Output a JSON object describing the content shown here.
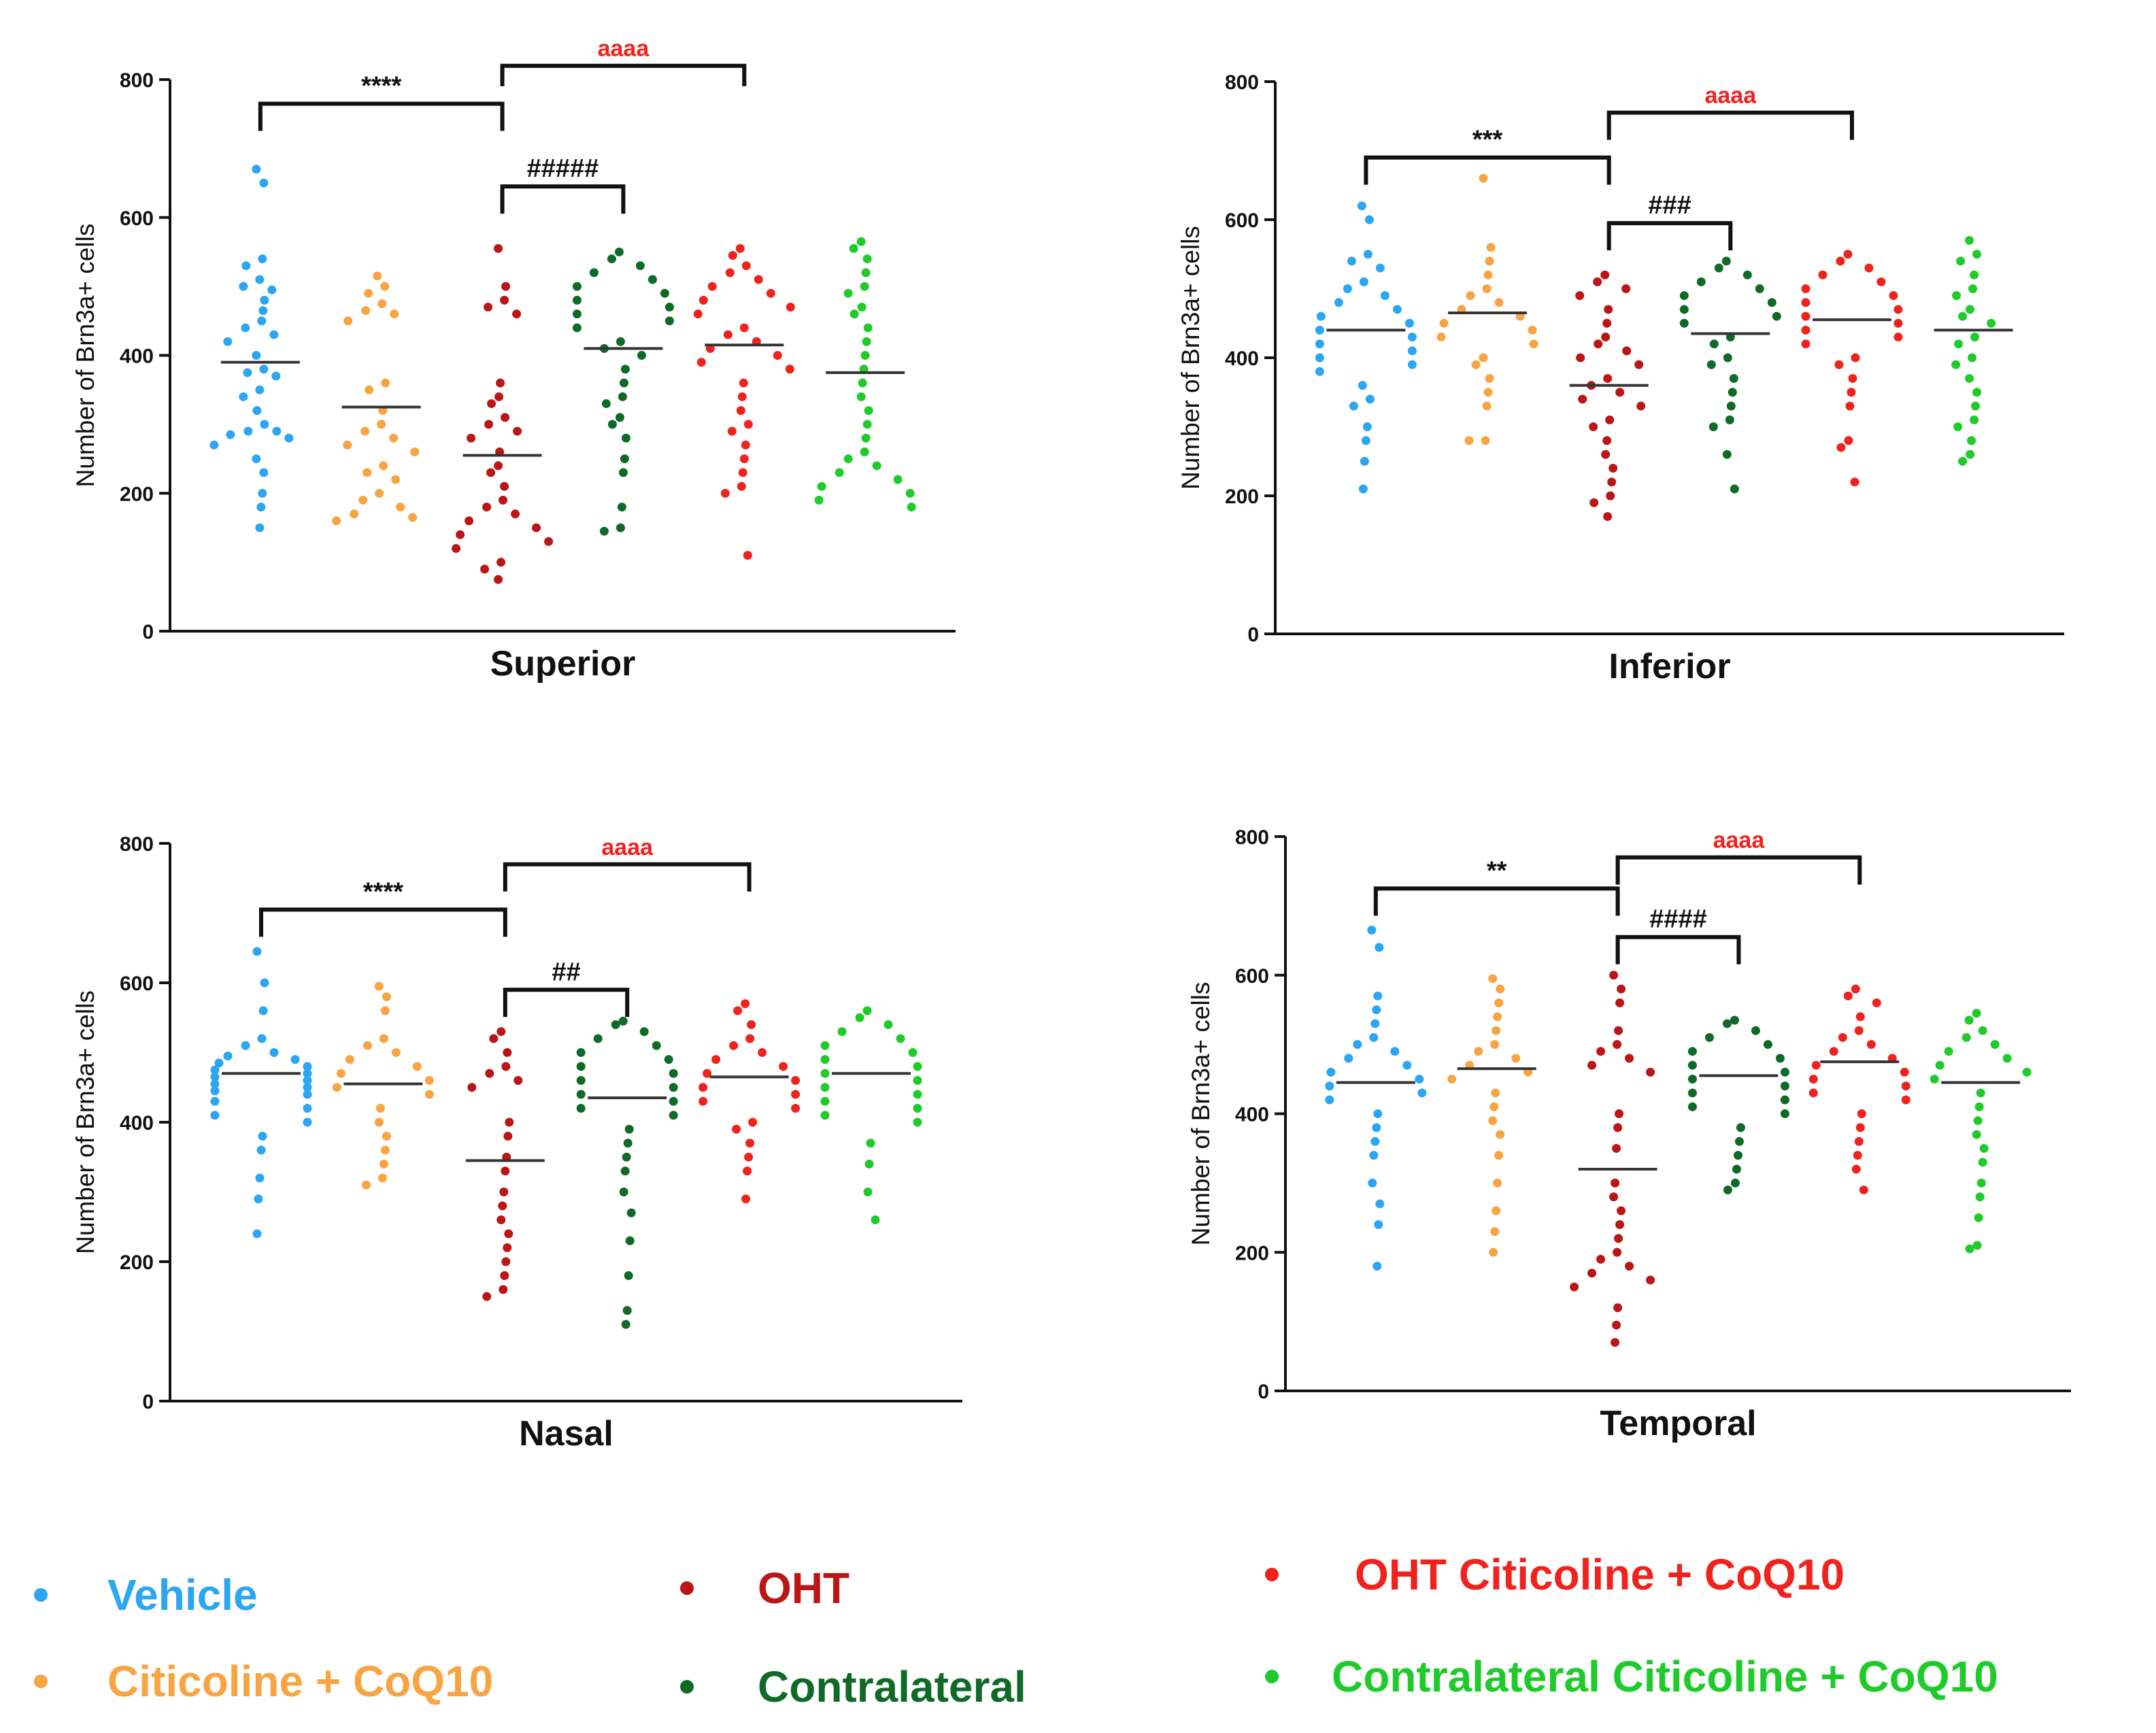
{
  "groups": [
    {
      "key": "vehicle",
      "label": "Vehicle",
      "color": "#2aa6f2"
    },
    {
      "key": "citicoline",
      "label": "Citicoline + CoQ10",
      "color": "#f8a442"
    },
    {
      "key": "oht",
      "label": "OHT",
      "color": "#bc1515"
    },
    {
      "key": "contralateral",
      "label": "Contralateral",
      "color": "#0f6a28"
    },
    {
      "key": "oht_cit",
      "label": "OHT Citicoline + CoQ10",
      "color": "#f0221d"
    },
    {
      "key": "contra_cit",
      "label": "Contralateral Citicoline + CoQ10",
      "color": "#1fcb2b"
    }
  ],
  "chart_data": [
    {
      "type": "scatter",
      "title": "Superior",
      "ylabel": "Number of Brn3a+ cells",
      "ylim": [
        0,
        800
      ],
      "yticks": [
        0,
        200,
        400,
        600,
        800
      ],
      "series": [
        {
          "name": "Vehicle",
          "mean": 390,
          "values": [
            670,
            650,
            540,
            530,
            510,
            500,
            495,
            480,
            465,
            450,
            440,
            430,
            420,
            400,
            380,
            375,
            370,
            350,
            340,
            320,
            300,
            290,
            290,
            285,
            280,
            270,
            250,
            230,
            200,
            180,
            150
          ]
        },
        {
          "name": "Citicoline + CoQ10",
          "mean": 325,
          "values": [
            515,
            500,
            490,
            475,
            465,
            460,
            450,
            360,
            350,
            320,
            300,
            290,
            280,
            270,
            260,
            240,
            230,
            220,
            200,
            190,
            180,
            170,
            160,
            165
          ]
        },
        {
          "name": "OHT",
          "mean": 255,
          "values": [
            555,
            500,
            480,
            470,
            460,
            360,
            340,
            330,
            310,
            300,
            290,
            280,
            260,
            240,
            230,
            210,
            190,
            180,
            170,
            160,
            150,
            140,
            130,
            120,
            100,
            90,
            75
          ]
        },
        {
          "name": "Contralateral",
          "mean": 410,
          "values": [
            550,
            540,
            530,
            520,
            510,
            500,
            490,
            480,
            470,
            460,
            450,
            440,
            420,
            410,
            400,
            380,
            360,
            340,
            330,
            310,
            300,
            280,
            250,
            230,
            180,
            150,
            145
          ]
        },
        {
          "name": "OHT Citicoline + CoQ10",
          "mean": 415,
          "values": [
            555,
            545,
            530,
            520,
            510,
            500,
            490,
            480,
            470,
            460,
            440,
            430,
            420,
            410,
            400,
            390,
            380,
            360,
            340,
            320,
            300,
            290,
            270,
            250,
            230,
            210,
            200,
            110
          ]
        },
        {
          "name": "Contralateral Citicoline + CoQ10",
          "mean": 375,
          "values": [
            565,
            555,
            540,
            520,
            500,
            490,
            470,
            460,
            440,
            420,
            400,
            380,
            360,
            340,
            320,
            300,
            280,
            260,
            250,
            240,
            230,
            220,
            210,
            200,
            190,
            180
          ]
        }
      ],
      "annotations": [
        {
          "text": "****",
          "from": 0,
          "to": 2,
          "y": 765,
          "color": "#111111"
        },
        {
          "text": "aaaa",
          "from": 2,
          "to": 4,
          "y": 820,
          "color": "#f0221d"
        },
        {
          "text": "#####",
          "from": 2,
          "to": 3,
          "y": 645,
          "color": "#111111"
        }
      ]
    },
    {
      "type": "scatter",
      "title": "Inferior",
      "ylabel": "Number of Brn3a+ cells",
      "ylim": [
        0,
        800
      ],
      "yticks": [
        0,
        200,
        400,
        600,
        800
      ],
      "series": [
        {
          "name": "Vehicle",
          "mean": 440,
          "values": [
            620,
            600,
            550,
            540,
            530,
            510,
            500,
            490,
            480,
            470,
            460,
            450,
            440,
            430,
            420,
            410,
            400,
            390,
            380,
            360,
            340,
            330,
            300,
            280,
            250,
            210
          ]
        },
        {
          "name": "Citicoline + CoQ10",
          "mean": 465,
          "values": [
            660,
            560,
            540,
            520,
            500,
            490,
            480,
            470,
            460,
            450,
            440,
            430,
            420,
            400,
            390,
            370,
            350,
            330,
            280,
            280
          ]
        },
        {
          "name": "OHT",
          "mean": 360,
          "values": [
            520,
            510,
            500,
            490,
            470,
            450,
            430,
            420,
            410,
            400,
            390,
            370,
            360,
            350,
            340,
            330,
            310,
            300,
            280,
            260,
            240,
            220,
            200,
            190,
            170
          ]
        },
        {
          "name": "Contralateral",
          "mean": 435,
          "values": [
            540,
            530,
            520,
            510,
            500,
            490,
            480,
            470,
            460,
            450,
            430,
            420,
            400,
            390,
            370,
            350,
            330,
            310,
            300,
            260,
            210
          ]
        },
        {
          "name": "OHT Citicoline + CoQ10",
          "mean": 455,
          "values": [
            550,
            540,
            530,
            520,
            510,
            500,
            490,
            480,
            470,
            460,
            450,
            440,
            430,
            420,
            400,
            390,
            370,
            350,
            330,
            280,
            270,
            220
          ]
        },
        {
          "name": "Contralateral Citicoline + CoQ10",
          "mean": 440,
          "values": [
            570,
            550,
            540,
            520,
            500,
            490,
            470,
            460,
            450,
            430,
            420,
            400,
            390,
            370,
            350,
            330,
            310,
            300,
            280,
            260,
            250
          ]
        }
      ],
      "annotations": [
        {
          "text": "***",
          "from": 0,
          "to": 2,
          "y": 690,
          "color": "#111111"
        },
        {
          "text": "aaaa",
          "from": 2,
          "to": 4,
          "y": 755,
          "color": "#f0221d"
        },
        {
          "text": "###",
          "from": 2,
          "to": 3,
          "y": 595,
          "color": "#111111"
        }
      ]
    },
    {
      "type": "scatter",
      "title": "Nasal",
      "ylabel": "Number of Brn3a+ cells",
      "ylim": [
        0,
        800
      ],
      "yticks": [
        0,
        200,
        400,
        600,
        800
      ],
      "series": [
        {
          "name": "Vehicle",
          "mean": 470,
          "values": [
            645,
            600,
            560,
            520,
            510,
            500,
            495,
            490,
            485,
            480,
            475,
            470,
            465,
            460,
            455,
            450,
            445,
            440,
            430,
            420,
            410,
            400,
            380,
            360,
            320,
            290,
            240
          ]
        },
        {
          "name": "Citicoline + CoQ10",
          "mean": 455,
          "values": [
            595,
            580,
            560,
            520,
            510,
            500,
            490,
            480,
            470,
            460,
            450,
            440,
            420,
            400,
            380,
            360,
            340,
            320,
            310
          ]
        },
        {
          "name": "OHT",
          "mean": 345,
          "values": [
            530,
            520,
            500,
            480,
            470,
            460,
            450,
            400,
            380,
            350,
            330,
            300,
            280,
            260,
            240,
            220,
            200,
            180,
            160,
            150
          ]
        },
        {
          "name": "Contralateral",
          "mean": 435,
          "values": [
            545,
            540,
            530,
            520,
            510,
            500,
            490,
            480,
            470,
            460,
            450,
            440,
            430,
            420,
            410,
            390,
            370,
            350,
            330,
            300,
            270,
            230,
            180,
            130,
            110
          ]
        },
        {
          "name": "OHT Citicoline + CoQ10",
          "mean": 465,
          "values": [
            570,
            560,
            540,
            520,
            510,
            500,
            490,
            480,
            470,
            460,
            450,
            440,
            430,
            420,
            400,
            390,
            370,
            350,
            330,
            290
          ]
        },
        {
          "name": "Contralateral Citicoline + CoQ10",
          "mean": 470,
          "values": [
            560,
            550,
            540,
            530,
            520,
            510,
            500,
            490,
            480,
            470,
            460,
            450,
            440,
            430,
            420,
            410,
            400,
            370,
            340,
            300,
            260
          ]
        }
      ],
      "annotations": [
        {
          "text": "****",
          "from": 0,
          "to": 2,
          "y": 705,
          "color": "#111111"
        },
        {
          "text": "aaaa",
          "from": 2,
          "to": 4,
          "y": 770,
          "color": "#f0221d"
        },
        {
          "text": "##",
          "from": 2,
          "to": 3,
          "y": 590,
          "color": "#111111"
        }
      ]
    },
    {
      "type": "scatter",
      "title": "Temporal",
      "ylabel": "Number of Brn3a+ cells",
      "ylim": [
        0,
        800
      ],
      "yticks": [
        0,
        200,
        400,
        600,
        800
      ],
      "series": [
        {
          "name": "Vehicle",
          "mean": 445,
          "values": [
            665,
            640,
            570,
            550,
            530,
            510,
            500,
            490,
            480,
            470,
            460,
            450,
            440,
            430,
            420,
            400,
            380,
            360,
            340,
            300,
            270,
            240,
            180
          ]
        },
        {
          "name": "Citicoline + CoQ10",
          "mean": 465,
          "values": [
            595,
            580,
            560,
            540,
            520,
            500,
            490,
            480,
            470,
            460,
            450,
            430,
            410,
            390,
            370,
            340,
            300,
            260,
            230,
            200
          ]
        },
        {
          "name": "OHT",
          "mean": 320,
          "values": [
            600,
            580,
            560,
            520,
            500,
            490,
            480,
            470,
            460,
            400,
            380,
            350,
            300,
            280,
            260,
            240,
            220,
            200,
            190,
            180,
            170,
            160,
            150,
            120,
            95,
            70
          ]
        },
        {
          "name": "Contralateral",
          "mean": 455,
          "values": [
            535,
            530,
            520,
            510,
            500,
            490,
            480,
            470,
            460,
            450,
            440,
            430,
            420,
            410,
            400,
            380,
            360,
            340,
            320,
            300,
            290
          ]
        },
        {
          "name": "OHT Citicoline + CoQ10",
          "mean": 475,
          "values": [
            580,
            570,
            560,
            540,
            520,
            510,
            500,
            490,
            480,
            470,
            460,
            450,
            440,
            430,
            420,
            400,
            380,
            360,
            340,
            320,
            290
          ]
        },
        {
          "name": "Contralateral Citicoline + CoQ10",
          "mean": 445,
          "values": [
            545,
            535,
            520,
            510,
            500,
            490,
            480,
            470,
            460,
            450,
            430,
            410,
            390,
            370,
            350,
            330,
            300,
            280,
            250,
            210,
            205
          ]
        }
      ],
      "annotations": [
        {
          "text": "**",
          "from": 0,
          "to": 2,
          "y": 725,
          "color": "#111111"
        },
        {
          "text": "aaaa",
          "from": 2,
          "to": 4,
          "y": 770,
          "color": "#f0221d"
        },
        {
          "text": "####",
          "from": 2,
          "to": 3,
          "y": 655,
          "color": "#111111"
        }
      ]
    }
  ]
}
